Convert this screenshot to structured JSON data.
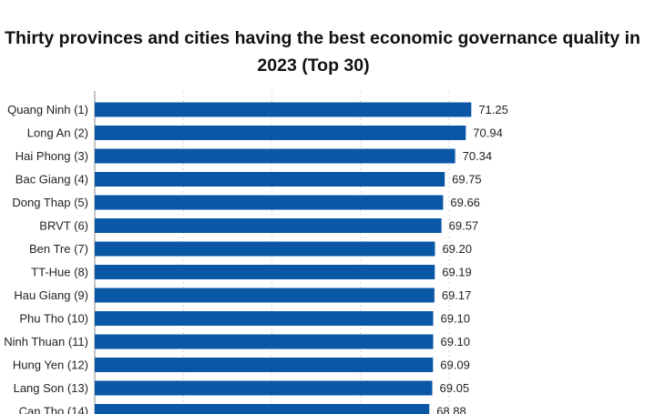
{
  "chart_data": {
    "type": "bar",
    "orientation": "horizontal",
    "title_line1": "Thirty provinces and cities having the best economic governance quality in",
    "title_line2": "2023 (Top 30)",
    "categories": [
      "Quang Ninh (1)",
      "Long An (2)",
      "Hai Phong (3)",
      "Bac Giang (4)",
      "Dong Thap (5)",
      "BRVT (6)",
      "Ben Tre (7)",
      "TT-Hue (8)",
      "Hau Giang (9)",
      "Phu Tho (10)",
      "Ninh Thuan (11)",
      "Hung Yen (12)",
      "Lang Son (13)",
      "Can Tho (14)"
    ],
    "values": [
      71.25,
      70.94,
      70.34,
      69.75,
      69.66,
      69.57,
      69.2,
      69.19,
      69.17,
      69.1,
      69.1,
      69.09,
      69.05,
      68.88
    ],
    "labels": [
      "71.25",
      "70.94",
      "70.34",
      "69.75",
      "69.66",
      "69.57",
      "69.20",
      "69.19",
      "69.17",
      "69.10",
      "69.10",
      "69.09",
      "69.05",
      "68.88"
    ],
    "xlim": [
      50,
      72
    ],
    "grid_step": 5,
    "grid": true,
    "bar_color": "#0a57a6",
    "xlabel": "",
    "ylabel": ""
  }
}
